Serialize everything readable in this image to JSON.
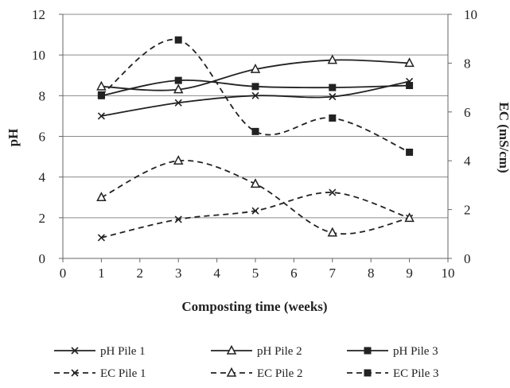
{
  "chart_data": {
    "type": "line",
    "title": "",
    "xlabel": "Composting time (weeks)",
    "ylabel_left": "pH",
    "ylabel_right": "EC (mS/cm)",
    "xlim": [
      0,
      10
    ],
    "ylim_left": [
      0,
      12
    ],
    "ylim_right": [
      0,
      10
    ],
    "x_ticks": [
      "0",
      "1",
      "2",
      "3",
      "4",
      "5",
      "6",
      "7",
      "8",
      "9",
      "10"
    ],
    "y_left_ticks": [
      "0",
      "2",
      "4",
      "6",
      "8",
      "10",
      "12"
    ],
    "y_right_ticks": [
      "0",
      "2",
      "4",
      "6",
      "8",
      "10"
    ],
    "grid": "horizontal",
    "legend_position": "bottom",
    "x": [
      1,
      3,
      5,
      7,
      9
    ],
    "series": [
      {
        "name": "pH Pile 1",
        "axis": "left",
        "marker": "x",
        "dash": "solid",
        "color": "#222222",
        "values": [
          7.0,
          7.65,
          8.0,
          7.95,
          8.7
        ]
      },
      {
        "name": "pH Pile 2",
        "axis": "left",
        "marker": "triangle",
        "dash": "solid",
        "color": "#222222",
        "values": [
          8.45,
          8.3,
          9.3,
          9.75,
          9.6
        ]
      },
      {
        "name": "pH Pile 3",
        "axis": "left",
        "marker": "square",
        "dash": "solid",
        "color": "#222222",
        "values": [
          8.0,
          8.75,
          8.45,
          8.4,
          8.5
        ]
      },
      {
        "name": "EC Pile 1",
        "axis": "right",
        "marker": "x",
        "dash": "dashed",
        "color": "#222222",
        "values": [
          0.85,
          1.6,
          1.95,
          2.7,
          1.65
        ]
      },
      {
        "name": "EC Pile 2",
        "axis": "right",
        "marker": "triangle",
        "dash": "dashed",
        "color": "#222222",
        "values": [
          2.5,
          4.0,
          3.05,
          1.05,
          1.65
        ]
      },
      {
        "name": "EC Pile 3",
        "axis": "right",
        "marker": "square",
        "dash": "dashed",
        "color": "#222222",
        "values": [
          6.7,
          8.95,
          5.2,
          5.75,
          4.35
        ]
      }
    ]
  }
}
